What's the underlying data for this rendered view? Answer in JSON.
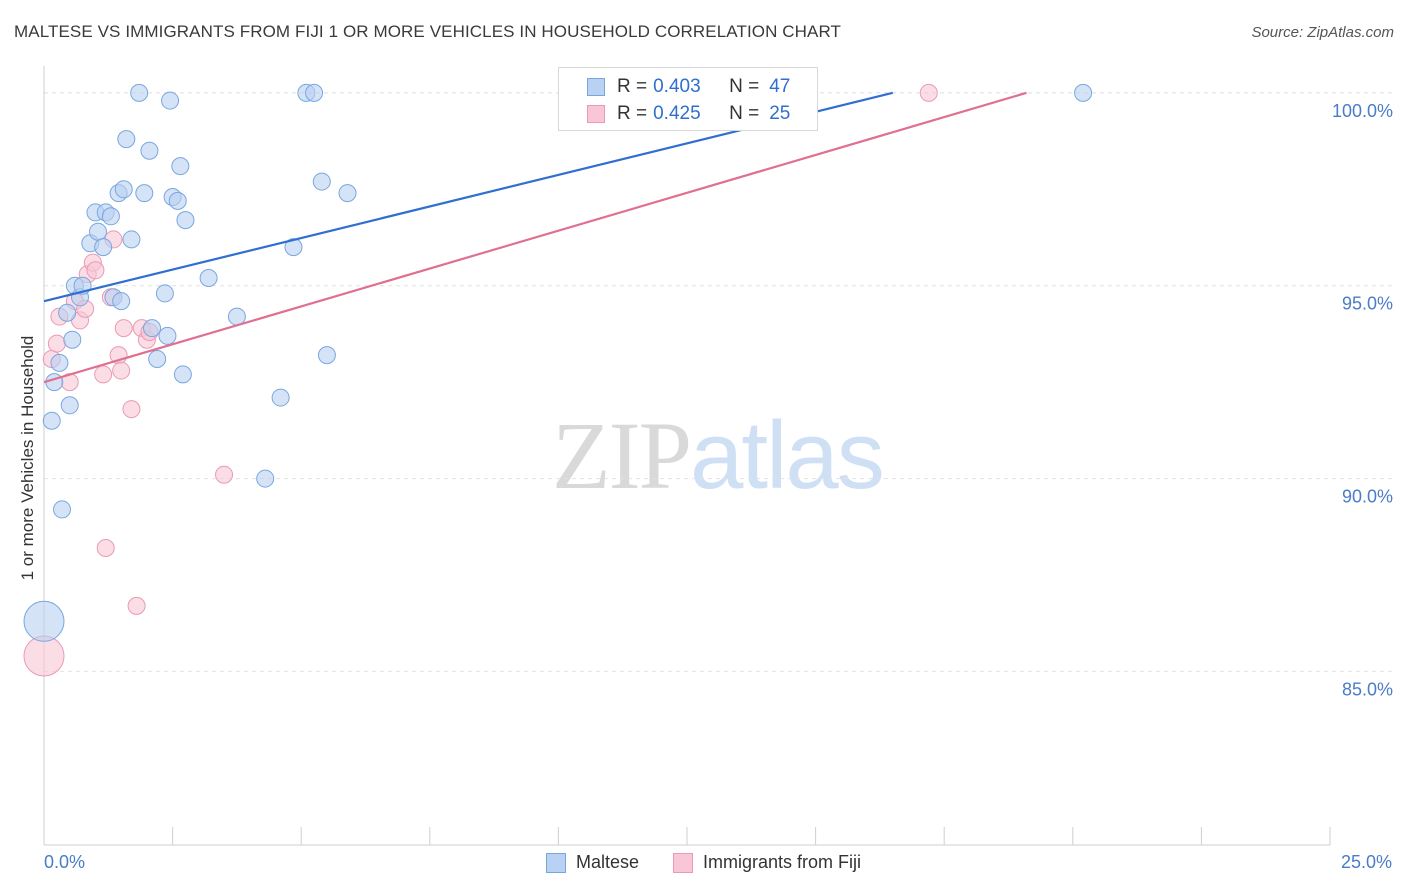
{
  "header": {
    "title": "MALTESE VS IMMIGRANTS FROM FIJI 1 OR MORE VEHICLES IN HOUSEHOLD CORRELATION CHART",
    "source": "Source: ZipAtlas.com"
  },
  "watermark": {
    "zip": "ZIP",
    "atlas": "atlas"
  },
  "legend": {
    "rows": [
      {
        "r_label": "R =",
        "r_value": "0.403",
        "n_label": "N =",
        "n_value": "47"
      },
      {
        "r_label": "R =",
        "r_value": "0.425",
        "n_label": "N =",
        "n_value": "25"
      }
    ]
  },
  "colors": {
    "maltese_fill": "#b9d1f2",
    "maltese_stroke": "#7aa6e0",
    "maltese_line": "#2f6fd0",
    "fiji_fill": "#f8c6d6",
    "fiji_stroke": "#ea9ab5",
    "fiji_line": "#e0708f",
    "tick_text": "#4a7cc7",
    "grid": "#e2e2e2"
  },
  "chart_data": {
    "type": "scatter",
    "title": "MALTESE VS IMMIGRANTS FROM FIJI 1 OR MORE VEHICLES IN HOUSEHOLD CORRELATION CHART",
    "xlabel": "",
    "ylabel": "1 or more Vehicles in Household",
    "xlim": [
      0,
      25
    ],
    "ylim": [
      80.5,
      100.8
    ],
    "x_tick_labels": [
      "0.0%",
      "25.0%"
    ],
    "y_ticks": [
      85,
      90,
      95,
      100
    ],
    "y_tick_labels": [
      "85.0%",
      "90.0%",
      "95.0%",
      "100.0%"
    ],
    "grid": true,
    "legend_position": "bottom",
    "series": [
      {
        "name": "Maltese",
        "r": 0.403,
        "n": 47,
        "trend": {
          "x": [
            0.0,
            16.5
          ],
          "y": [
            94.6,
            100.0
          ]
        },
        "points": [
          {
            "x": 0.0,
            "y": 86.3,
            "big": true
          },
          {
            "x": 0.15,
            "y": 91.5
          },
          {
            "x": 0.2,
            "y": 92.5
          },
          {
            "x": 0.3,
            "y": 93.0
          },
          {
            "x": 0.35,
            "y": 89.2
          },
          {
            "x": 0.5,
            "y": 91.9
          },
          {
            "x": 0.45,
            "y": 94.3
          },
          {
            "x": 0.6,
            "y": 95.0
          },
          {
            "x": 0.7,
            "y": 94.7
          },
          {
            "x": 0.75,
            "y": 95.0
          },
          {
            "x": 0.9,
            "y": 96.1
          },
          {
            "x": 1.0,
            "y": 96.9
          },
          {
            "x": 1.05,
            "y": 96.4
          },
          {
            "x": 1.15,
            "y": 96.0
          },
          {
            "x": 1.2,
            "y": 96.9
          },
          {
            "x": 1.3,
            "y": 96.8
          },
          {
            "x": 1.35,
            "y": 94.7
          },
          {
            "x": 1.5,
            "y": 94.6
          },
          {
            "x": 1.45,
            "y": 97.4
          },
          {
            "x": 1.55,
            "y": 97.5
          },
          {
            "x": 1.6,
            "y": 98.8
          },
          {
            "x": 1.7,
            "y": 96.2
          },
          {
            "x": 1.85,
            "y": 100.0
          },
          {
            "x": 1.95,
            "y": 97.4
          },
          {
            "x": 2.05,
            "y": 98.5
          },
          {
            "x": 2.1,
            "y": 93.9
          },
          {
            "x": 2.2,
            "y": 93.1
          },
          {
            "x": 2.35,
            "y": 94.8
          },
          {
            "x": 2.4,
            "y": 93.7
          },
          {
            "x": 2.45,
            "y": 99.8
          },
          {
            "x": 2.5,
            "y": 97.3
          },
          {
            "x": 2.6,
            "y": 97.2
          },
          {
            "x": 2.65,
            "y": 98.1
          },
          {
            "x": 2.7,
            "y": 92.7
          },
          {
            "x": 2.75,
            "y": 96.7
          },
          {
            "x": 3.2,
            "y": 95.2
          },
          {
            "x": 3.75,
            "y": 94.2
          },
          {
            "x": 4.3,
            "y": 90.0
          },
          {
            "x": 4.6,
            "y": 92.1
          },
          {
            "x": 4.85,
            "y": 96.0
          },
          {
            "x": 5.1,
            "y": 100.0
          },
          {
            "x": 5.25,
            "y": 100.0
          },
          {
            "x": 5.4,
            "y": 97.7
          },
          {
            "x": 5.5,
            "y": 93.2
          },
          {
            "x": 5.9,
            "y": 97.4
          },
          {
            "x": 20.2,
            "y": 100.0
          },
          {
            "x": 0.55,
            "y": 93.6
          }
        ]
      },
      {
        "name": "Immigrants from Fiji",
        "r": 0.425,
        "n": 25,
        "trend": {
          "x": [
            0.0,
            19.1
          ],
          "y": [
            92.5,
            100.0
          ]
        },
        "points": [
          {
            "x": 0.0,
            "y": 85.4,
            "big": true
          },
          {
            "x": 0.15,
            "y": 93.1
          },
          {
            "x": 0.25,
            "y": 93.5
          },
          {
            "x": 0.3,
            "y": 94.2
          },
          {
            "x": 0.5,
            "y": 92.5
          },
          {
            "x": 0.6,
            "y": 94.6
          },
          {
            "x": 0.7,
            "y": 94.1
          },
          {
            "x": 0.8,
            "y": 94.4
          },
          {
            "x": 0.85,
            "y": 95.3
          },
          {
            "x": 0.95,
            "y": 95.6
          },
          {
            "x": 1.0,
            "y": 95.4
          },
          {
            "x": 1.15,
            "y": 92.7
          },
          {
            "x": 1.2,
            "y": 88.2
          },
          {
            "x": 1.3,
            "y": 94.7
          },
          {
            "x": 1.35,
            "y": 96.2
          },
          {
            "x": 1.45,
            "y": 93.2
          },
          {
            "x": 1.5,
            "y": 92.8
          },
          {
            "x": 1.55,
            "y": 93.9
          },
          {
            "x": 1.7,
            "y": 91.8
          },
          {
            "x": 1.8,
            "y": 86.7
          },
          {
            "x": 1.9,
            "y": 93.9
          },
          {
            "x": 2.0,
            "y": 93.6
          },
          {
            "x": 3.5,
            "y": 90.1
          },
          {
            "x": 17.2,
            "y": 100.0
          },
          {
            "x": 2.05,
            "y": 93.8
          }
        ]
      }
    ]
  }
}
